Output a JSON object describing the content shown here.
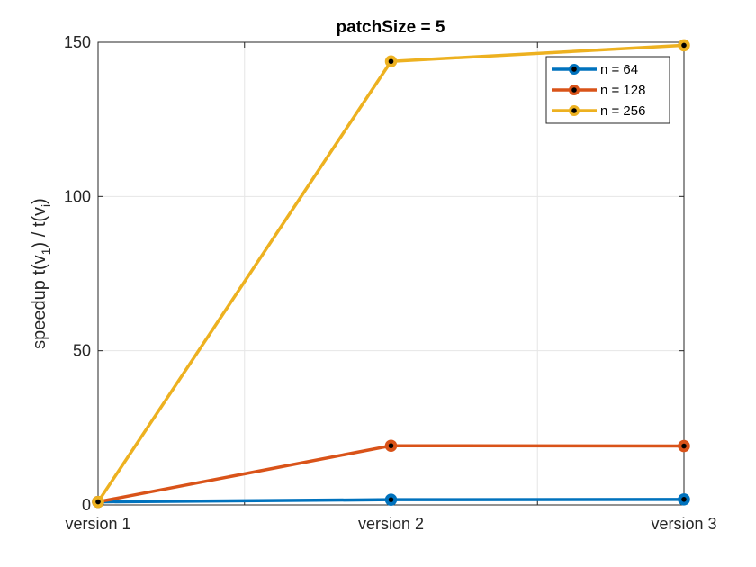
{
  "chart_data": {
    "type": "line",
    "title": "patchSize = 5",
    "xlabel": "",
    "ylabel": {
      "prefix": "speedup t(v",
      "sub1": "1",
      "middle": ") / t(v",
      "sub2": "i",
      "suffix": ")"
    },
    "categories": [
      "version 1",
      "version 2",
      "version 3"
    ],
    "ylim": [
      0,
      150
    ],
    "yticks": [
      0,
      50,
      100,
      150
    ],
    "grid": true,
    "legend_position": "top-right",
    "series": [
      {
        "name": "n = 64",
        "color": "#0072BD",
        "values": [
          1,
          1.7,
          1.8
        ]
      },
      {
        "name": "n = 128",
        "color": "#D95319",
        "values": [
          1,
          19.2,
          19.1
        ]
      },
      {
        "name": "n = 256",
        "color": "#EDB120",
        "values": [
          1,
          143.8,
          149
        ]
      }
    ]
  }
}
